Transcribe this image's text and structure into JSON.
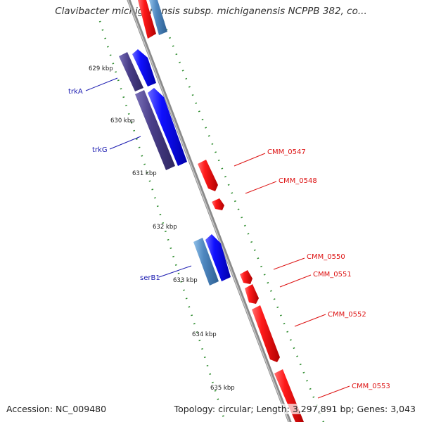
{
  "title": "Clavibacter michiganensis subsp. michiganensis NCPPB 382, co...",
  "footer": {
    "accession": "Accession: NC_009480",
    "summary": "Topology: circular; Length: 3,297,891 bp; Genes: 3,043"
  },
  "ticks": [
    "629 kbp",
    "630 kbp",
    "631 kbp",
    "632 kbp",
    "633 kbp",
    "634 kbp",
    "635 kbp"
  ],
  "genes_forward": [
    {
      "name": "trkA",
      "color": "#0000ee",
      "pair_color": "#4a3f8a"
    },
    {
      "name": "trkG",
      "color": "#0000ee",
      "pair_color": "#4a3f8a"
    },
    {
      "name": "serB1",
      "color": "#0000ee",
      "pair_color": "#4f88c0"
    }
  ],
  "genes_reverse": [
    {
      "name": "CMM_0547",
      "color": "#ee1111"
    },
    {
      "name": "CMM_0548",
      "color": "#ee1111"
    },
    {
      "name": "CMM_0550",
      "color": "#ee1111"
    },
    {
      "name": "CMM_0551",
      "color": "#ee1111"
    },
    {
      "name": "CMM_0552",
      "color": "#ee1111"
    },
    {
      "name": "CMM_0553",
      "color": "#ee1111"
    }
  ],
  "colors": {
    "backbone": "#8a8a8a",
    "tick_dots": "#2a8a2a",
    "forward": "#0000ee",
    "forward_pair_dark": "#4a3f8a",
    "forward_pair_light": "#4f88c0",
    "reverse": "#ee1111"
  }
}
